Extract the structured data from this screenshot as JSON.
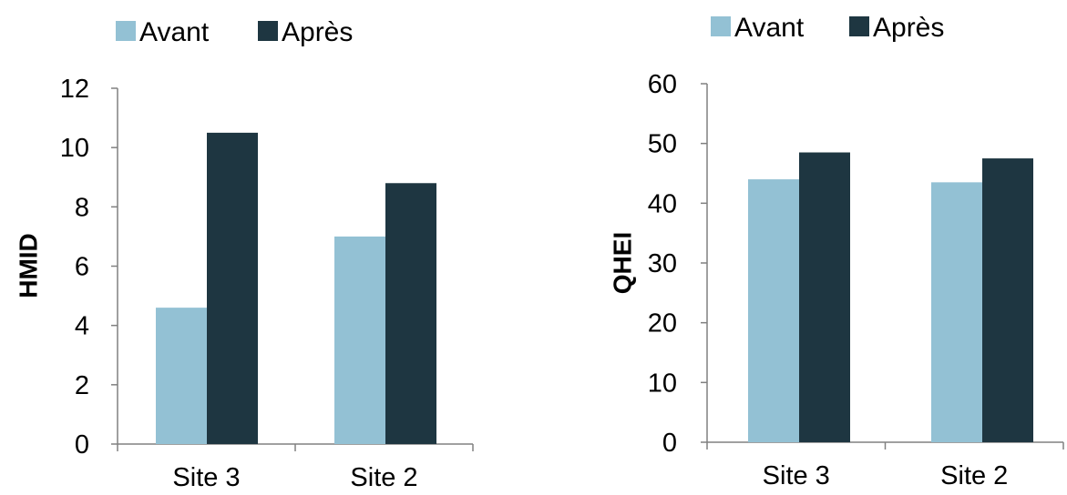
{
  "chart_data": [
    {
      "type": "bar",
      "categories": [
        "Site 3",
        "Site 2"
      ],
      "series": [
        {
          "name": "Avant",
          "values": [
            4.6,
            7.0
          ]
        },
        {
          "name": "Après",
          "values": [
            10.5,
            8.8
          ]
        }
      ],
      "ylabel": "HMID",
      "xlabel": "",
      "ylim": [
        0,
        12
      ],
      "yticks": [
        0,
        2,
        4,
        6,
        8,
        10,
        12
      ],
      "legend_position": "top",
      "grid": false
    },
    {
      "type": "bar",
      "categories": [
        "Site 3",
        "Site 2"
      ],
      "series": [
        {
          "name": "Avant",
          "values": [
            44,
            43.5
          ]
        },
        {
          "name": "Après",
          "values": [
            48.5,
            47.5
          ]
        }
      ],
      "ylabel": "QHEI",
      "xlabel": "",
      "ylim": [
        0,
        60
      ],
      "yticks": [
        0,
        10,
        20,
        30,
        40,
        50,
        60
      ],
      "legend_position": "top",
      "grid": false
    }
  ],
  "colors": {
    "avant": "#93c1d4",
    "apres": "#1e3641",
    "axis": "#808080"
  }
}
